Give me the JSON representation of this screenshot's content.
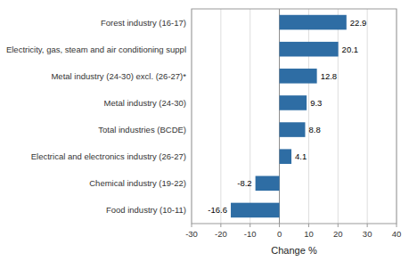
{
  "chart_data": {
    "type": "bar",
    "orientation": "horizontal",
    "categories": [
      "Food industry (10-11)",
      "Chemical industry (19-22)",
      "Electrical and electronics industry (26-27)",
      "Total industries (BCDE)",
      "Metal industry (24-30)",
      "Metal industry (24-30) excl. (26-27)*",
      "Electricity, gas, steam and air conditioning suppl",
      "Forest industry (16-17)"
    ],
    "values": [
      -16.6,
      -8.2,
      4.1,
      8.8,
      9.3,
      12.8,
      20.1,
      22.9
    ],
    "color": "#2E6DA4",
    "xlabel": "Change %",
    "xlim": [
      -30,
      40
    ],
    "xticks": [
      -30,
      -20,
      -10,
      0,
      10,
      20,
      30,
      40
    ],
    "grid": true,
    "data_labels": true
  }
}
